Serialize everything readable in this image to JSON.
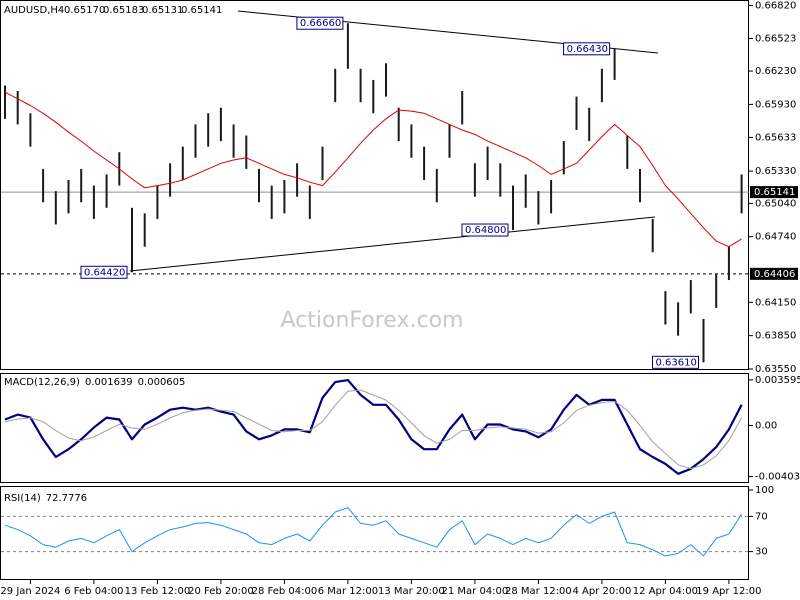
{
  "chart_data": [
    {
      "type": "ohlc",
      "symbol": "AUDUSD,H4",
      "quote": [
        "0.65170",
        "0.65183",
        "0.65131",
        "0.65141"
      ],
      "watermark": "ActionForex.com",
      "color": "#1a1a1a",
      "ma_color": "#e00000",
      "ylim": [
        0.6355,
        0.6686
      ],
      "yticks": [
        {
          "value": 0.6682,
          "label": "0.66820"
        },
        {
          "value": 0.66523,
          "label": "0.66523"
        },
        {
          "value": 0.6623,
          "label": "0.66230"
        },
        {
          "value": 0.6593,
          "label": "0.65930"
        },
        {
          "value": 0.65633,
          "label": "0.65633"
        },
        {
          "value": 0.6533,
          "label": "0.65330"
        },
        {
          "value": 0.6504,
          "label": "0.65040"
        },
        {
          "value": 0.6474,
          "label": "0.64740"
        },
        {
          "value": 0.6415,
          "label": "0.64150"
        },
        {
          "value": 0.6385,
          "label": "0.63850"
        },
        {
          "value": 0.6355,
          "label": "0.63550"
        }
      ],
      "price_lines": [
        {
          "value": 0.65141,
          "label": "0.65141",
          "style": "solid"
        },
        {
          "value": 0.64406,
          "label": "0.64406",
          "style": "dashed"
        }
      ],
      "annotations": [
        {
          "value": 0.6666,
          "label": "0.66660",
          "at": "high"
        },
        {
          "value": 0.6643,
          "label": "0.66430",
          "at": "high"
        },
        {
          "value": 0.648,
          "label": "0.64800",
          "at": "low"
        },
        {
          "value": 0.6442,
          "label": "0.64420",
          "at": "low"
        },
        {
          "value": 0.6361,
          "label": "0.63610",
          "at": "low"
        }
      ],
      "high": [
        0.661,
        0.6605,
        0.6585,
        0.6535,
        0.6515,
        0.6525,
        0.6535,
        0.652,
        0.653,
        0.655,
        0.65,
        0.6495,
        0.652,
        0.654,
        0.6555,
        0.6575,
        0.6585,
        0.659,
        0.6575,
        0.6565,
        0.6535,
        0.652,
        0.6525,
        0.654,
        0.652,
        0.6555,
        0.6625,
        0.6666,
        0.6625,
        0.6615,
        0.663,
        0.659,
        0.6575,
        0.6555,
        0.6535,
        0.6575,
        0.6605,
        0.654,
        0.6555,
        0.654,
        0.652,
        0.653,
        0.6515,
        0.6525,
        0.656,
        0.66,
        0.659,
        0.6625,
        0.6643,
        0.6565,
        0.6535,
        0.649,
        0.6425,
        0.6415,
        0.6435,
        0.64,
        0.644,
        0.6465,
        0.653
      ],
      "low": [
        0.658,
        0.6575,
        0.6555,
        0.6505,
        0.6485,
        0.6495,
        0.6505,
        0.649,
        0.65,
        0.652,
        0.6442,
        0.6465,
        0.649,
        0.651,
        0.6525,
        0.6545,
        0.6555,
        0.656,
        0.6545,
        0.6535,
        0.6505,
        0.649,
        0.6495,
        0.651,
        0.649,
        0.6525,
        0.6595,
        0.6625,
        0.6595,
        0.6585,
        0.66,
        0.656,
        0.6545,
        0.6525,
        0.6505,
        0.6545,
        0.6575,
        0.651,
        0.6525,
        0.651,
        0.648,
        0.65,
        0.6485,
        0.6495,
        0.653,
        0.657,
        0.656,
        0.6595,
        0.6615,
        0.6535,
        0.6505,
        0.646,
        0.6395,
        0.6385,
        0.6405,
        0.6361,
        0.641,
        0.6435,
        0.6495
      ],
      "ma": [
        0.6604,
        0.6598,
        0.6592,
        0.6585,
        0.6577,
        0.6568,
        0.656,
        0.6551,
        0.6543,
        0.6535,
        0.6526,
        0.6518,
        0.652,
        0.6522,
        0.6525,
        0.653,
        0.6535,
        0.654,
        0.6543,
        0.6545,
        0.654,
        0.6535,
        0.653,
        0.6527,
        0.6523,
        0.652,
        0.6532,
        0.6545,
        0.6558,
        0.657,
        0.658,
        0.6588,
        0.6587,
        0.6585,
        0.658,
        0.6575,
        0.657,
        0.6566,
        0.656,
        0.6555,
        0.655,
        0.6545,
        0.6538,
        0.653,
        0.6535,
        0.654,
        0.6552,
        0.6564,
        0.6575,
        0.6565,
        0.6555,
        0.6538,
        0.652,
        0.6508,
        0.6495,
        0.6482,
        0.647,
        0.6465,
        0.6472
      ]
    },
    {
      "type": "line",
      "title": "MACD(12,26,9)",
      "header_values": [
        0.001639,
        0.000605
      ],
      "ylim": [
        -0.00446,
        0.00406
      ],
      "yticks": [
        0.003595,
        {
          "value": 0,
          "label": "0.00"
        },
        -0.00403
      ],
      "series": [
        {
          "color": "#000080",
          "width": 2.2,
          "values": [
            0.00047,
            0.00086,
            0.00062,
            -0.00109,
            -0.00249,
            -0.00187,
            -0.00109,
            -0.00016,
            0.00062,
            0.00047,
            -0.00109,
            8e-05,
            0.00062,
            0.00124,
            0.0014,
            0.00124,
            0.0014,
            0.00109,
            0.00086,
            -0.00047,
            -0.00109,
            -0.00078,
            -0.00031,
            -0.00031,
            -0.00054,
            0.00218,
            0.00342,
            0.00358,
            0.00241,
            0.00163,
            0.00163,
            0.00047,
            -0.00109,
            -0.00187,
            -0.00187,
            -0.00031,
            0.00086,
            -0.00109,
            8e-05,
            8e-05,
            -0.00031,
            -0.00047,
            -0.00093,
            -0.00031,
            0.00124,
            0.00241,
            0.00163,
            0.00202,
            0.00202,
            8e-05,
            -0.00187,
            -0.00249,
            -0.00303,
            -0.00381,
            -0.00342,
            -0.00265,
            -0.00171,
            -0.00031,
            0.001639
          ]
        },
        {
          "color": "#a0a0a0",
          "width": 1,
          "values": [
            0.0003,
            0.0005,
            0.0006,
            0.0003,
            -0.0004,
            -0.001,
            -0.0012,
            -0.0009,
            -0.0004,
            0.0001,
            -0.0002,
            -0.0003,
            0.0001,
            0.0006,
            0.001,
            0.0012,
            0.0013,
            0.0012,
            0.0011,
            0.0006,
            0.0001,
            -0.0004,
            -0.0005,
            -0.0004,
            -0.0004,
            0.0003,
            0.0016,
            0.0027,
            0.0028,
            0.0024,
            0.002,
            0.0012,
            0.0002,
            -0.0008,
            -0.0014,
            -0.0011,
            -0.0004,
            -0.0004,
            -0.0002,
            -0.0001,
            -0.0002,
            -0.0003,
            -0.0006,
            -0.0005,
            0.0002,
            0.0012,
            0.0016,
            0.0018,
            0.0019,
            0.0012,
            0,
            -0.0013,
            -0.0022,
            -0.0031,
            -0.0034,
            -0.0031,
            -0.0024,
            -0.0012,
            0.000605
          ]
        }
      ]
    },
    {
      "type": "line",
      "title": "RSI(14)",
      "header_values": [
        72.7776
      ],
      "grid": true,
      "ylim": [
        0,
        100
      ],
      "yticks": [
        100,
        70,
        30
      ],
      "series": [
        {
          "color": "#1e90ff",
          "width": 1,
          "values": [
            60,
            55,
            48,
            38,
            35,
            42,
            45,
            40,
            48,
            55,
            30,
            40,
            48,
            55,
            58,
            62,
            63,
            60,
            55,
            50,
            40,
            38,
            45,
            50,
            42,
            60,
            75,
            80,
            62,
            60,
            65,
            50,
            45,
            40,
            35,
            55,
            65,
            38,
            50,
            45,
            38,
            45,
            40,
            45,
            60,
            72,
            62,
            70,
            75,
            40,
            38,
            32,
            25,
            28,
            38,
            25,
            45,
            50,
            72.7776
          ]
        }
      ],
      "categories": [
        null,
        null,
        "29 Jan 2024",
        null,
        null,
        null,
        null,
        "6 Feb 04:00",
        null,
        null,
        null,
        null,
        "13 Feb 12:00",
        null,
        null,
        null,
        null,
        "20 Feb 20:00",
        null,
        null,
        null,
        null,
        "28 Feb 04:00",
        null,
        null,
        null,
        null,
        "6 Mar 12:00",
        null,
        null,
        null,
        null,
        "13 Mar 20:00",
        null,
        null,
        null,
        null,
        "21 Mar 04:00",
        null,
        null,
        null,
        null,
        "28 Mar 12:00",
        null,
        null,
        null,
        null,
        "4 Apr 20:00",
        null,
        null,
        null,
        null,
        "12 Apr 04:00",
        null,
        null,
        null,
        null,
        "19 Apr 12:00",
        null
      ]
    }
  ]
}
